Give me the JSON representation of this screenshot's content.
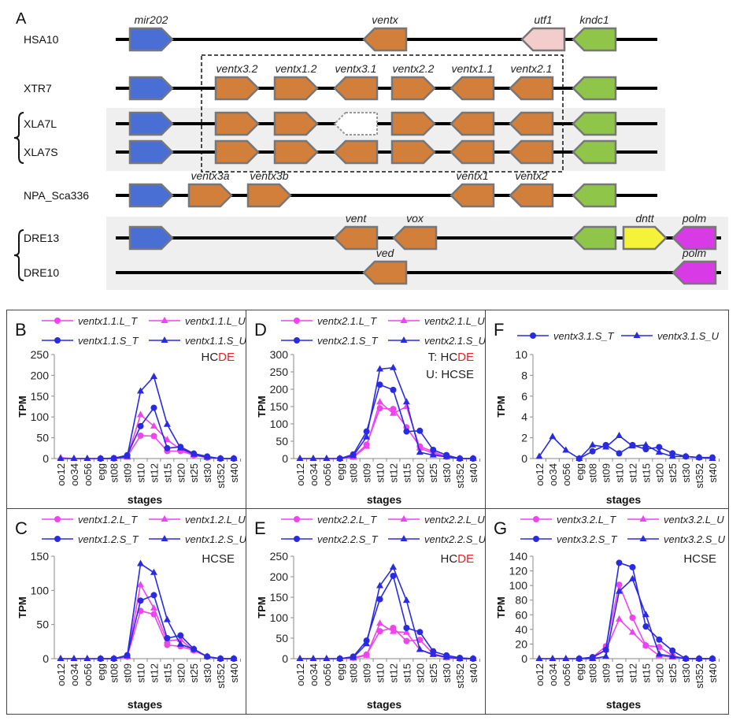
{
  "panel_a": {
    "letter": "A",
    "colors": {
      "mir": "#4a6fd4",
      "ventx": "#d27f3c",
      "utf1": "#f3cccc",
      "kndc1": "#8fc64a",
      "dntt": "#f5f23a",
      "polm": "#d83be6",
      "missing": "#ffffff"
    },
    "rows": [
      {
        "label": "HSA10",
        "genes": [
          {
            "label": "mir202",
            "type": "mir",
            "strand": "+"
          },
          {
            "label": "ventx",
            "type": "ventx",
            "strand": "-"
          },
          {
            "label": "utf1",
            "type": "utf1",
            "strand": "-"
          },
          {
            "label": "kndc1",
            "type": "kndc1",
            "strand": "-"
          }
        ]
      },
      {
        "label": "XTR7",
        "genes": [
          {
            "label": "",
            "type": "mir",
            "strand": "+"
          },
          {
            "label": "ventx3.2",
            "type": "ventx",
            "strand": "+"
          },
          {
            "label": "ventx1.2",
            "type": "ventx",
            "strand": "+"
          },
          {
            "label": "ventx3.1",
            "type": "ventx",
            "strand": "-"
          },
          {
            "label": "ventx2.2",
            "type": "ventx",
            "strand": "+"
          },
          {
            "label": "ventx1.1",
            "type": "ventx",
            "strand": "-"
          },
          {
            "label": "ventx2.1",
            "type": "ventx",
            "strand": "-"
          },
          {
            "label": "",
            "type": "kndc1",
            "strand": "-"
          }
        ]
      },
      {
        "label": "XLA7L",
        "genes": [
          {
            "label": "",
            "type": "mir",
            "strand": "+"
          },
          {
            "label": "",
            "type": "ventx",
            "strand": "+"
          },
          {
            "label": "",
            "type": "ventx",
            "strand": "+"
          },
          {
            "label": "",
            "type": "missing",
            "strand": "-"
          },
          {
            "label": "",
            "type": "ventx",
            "strand": "+"
          },
          {
            "label": "",
            "type": "ventx",
            "strand": "-"
          },
          {
            "label": "",
            "type": "ventx",
            "strand": "-"
          },
          {
            "label": "",
            "type": "kndc1",
            "strand": "-"
          }
        ]
      },
      {
        "label": "XLA7S",
        "genes": [
          {
            "label": "",
            "type": "mir",
            "strand": "+"
          },
          {
            "label": "",
            "type": "ventx",
            "strand": "+"
          },
          {
            "label": "",
            "type": "ventx",
            "strand": "+"
          },
          {
            "label": "",
            "type": "ventx",
            "strand": "-"
          },
          {
            "label": "",
            "type": "ventx",
            "strand": "+"
          },
          {
            "label": "",
            "type": "ventx",
            "strand": "-"
          },
          {
            "label": "",
            "type": "ventx",
            "strand": "-"
          },
          {
            "label": "",
            "type": "kndc1",
            "strand": "-"
          }
        ]
      },
      {
        "label": "NPA_Sca336",
        "genes": [
          {
            "label": "",
            "type": "mir",
            "strand": "+"
          },
          {
            "label": "ventx3a",
            "type": "ventx",
            "strand": "+"
          },
          {
            "label": "ventx3b",
            "type": "ventx",
            "strand": "+"
          },
          {
            "label": "ventx1",
            "type": "ventx",
            "strand": "-"
          },
          {
            "label": "ventx2",
            "type": "ventx",
            "strand": "-"
          },
          {
            "label": "",
            "type": "kndc1",
            "strand": "-"
          }
        ]
      },
      {
        "label": "DRE13",
        "genes": [
          {
            "label": "",
            "type": "mir",
            "strand": "+"
          },
          {
            "label": "vent",
            "type": "ventx",
            "strand": "-"
          },
          {
            "label": "vox",
            "type": "ventx",
            "strand": "-"
          },
          {
            "label": "",
            "type": "kndc1",
            "strand": "-"
          },
          {
            "label": "dntt",
            "type": "dntt",
            "strand": "+"
          },
          {
            "label": "polm",
            "type": "polm",
            "strand": "-"
          }
        ]
      },
      {
        "label": "DRE10",
        "genes": [
          {
            "label": "ved",
            "type": "ventx",
            "strand": "-"
          },
          {
            "label": "polm",
            "type": "polm",
            "strand": "-"
          }
        ]
      }
    ]
  },
  "chart_data": [
    {
      "type": "line",
      "letter": "B",
      "xlabel": "stages",
      "ylabel": "TPM",
      "ylim": [
        0,
        250
      ],
      "yticks": [
        "0",
        "50",
        "100",
        "150",
        "200",
        "250"
      ],
      "categories": [
        "oo12",
        "oo34",
        "oo56",
        "egg",
        "st08",
        "st09",
        "st10",
        "st12",
        "st15",
        "st20",
        "st25",
        "st30",
        "st352",
        "st40"
      ],
      "annotation": [
        {
          "parts": [
            {
              "text": "HC",
              "color": "#222222"
            },
            {
              "text": "DE",
              "color": "#e0262b"
            }
          ]
        }
      ],
      "series": [
        {
          "name": "ventx1.1.L_T",
          "color": "#ee44ee",
          "marker": "circle",
          "values": [
            null,
            null,
            null,
            0,
            0,
            5,
            55,
            54,
            18,
            18,
            8,
            2,
            0,
            0
          ]
        },
        {
          "name": "ventx1.1.L_U",
          "color": "#ee44ee",
          "marker": "triangle",
          "values": [
            2,
            0,
            0,
            0,
            0,
            3,
            105,
            78,
            45,
            22,
            8,
            3,
            0,
            0
          ]
        },
        {
          "name": "ventx1.1.S_T",
          "color": "#2a2ae0",
          "marker": "circle",
          "values": [
            null,
            null,
            null,
            0,
            1,
            8,
            78,
            122,
            25,
            28,
            12,
            5,
            0,
            0
          ]
        },
        {
          "name": "ventx1.1.S_U",
          "color": "#2a2ae0",
          "marker": "triangle",
          "values": [
            0,
            0,
            0,
            0,
            0,
            5,
            162,
            197,
            82,
            25,
            10,
            3,
            0,
            0
          ]
        }
      ]
    },
    {
      "type": "line",
      "letter": "D",
      "xlabel": "stages",
      "ylabel": "TPM",
      "ylim": [
        0,
        300
      ],
      "yticks": [
        "0",
        "50",
        "100",
        "150",
        "200",
        "250",
        "300"
      ],
      "categories": [
        "oo12",
        "oo34",
        "oo56",
        "egg",
        "st08",
        "st09",
        "st10",
        "st12",
        "st15",
        "st20",
        "st25",
        "st30",
        "st352",
        "st40"
      ],
      "annotation": [
        {
          "parts": [
            {
              "text": "T: HC",
              "color": "#222222"
            },
            {
              "text": "DE",
              "color": "#e0262b"
            }
          ]
        },
        {
          "parts": [
            {
              "text": "U: HCSE",
              "color": "#222222"
            }
          ]
        }
      ],
      "series": [
        {
          "name": "ventx2.1.L_T",
          "color": "#ee44ee",
          "marker": "circle",
          "values": [
            null,
            null,
            null,
            0,
            5,
            40,
            145,
            143,
            90,
            35,
            20,
            5,
            0,
            0
          ]
        },
        {
          "name": "ventx2.1.L_U",
          "color": "#ee44ee",
          "marker": "triangle",
          "values": [
            0,
            0,
            0,
            0,
            3,
            35,
            163,
            130,
            150,
            30,
            15,
            5,
            0,
            0
          ]
        },
        {
          "name": "ventx2.1.S_T",
          "color": "#2a2ae0",
          "marker": "circle",
          "values": [
            null,
            null,
            null,
            0,
            12,
            78,
            213,
            198,
            78,
            80,
            25,
            10,
            0,
            0
          ]
        },
        {
          "name": "ventx2.1.S_U",
          "color": "#2a2ae0",
          "marker": "triangle",
          "values": [
            0,
            0,
            0,
            0,
            8,
            62,
            258,
            262,
            163,
            18,
            10,
            5,
            0,
            0
          ]
        }
      ]
    },
    {
      "type": "line",
      "letter": "F",
      "xlabel": "stages",
      "ylabel": "TPM",
      "ylim": [
        0,
        10
      ],
      "yticks": [
        "0",
        "2",
        "4",
        "6",
        "8",
        "10"
      ],
      "categories": [
        "oo12",
        "oo34",
        "oo56",
        "egg",
        "st08",
        "st09",
        "st10",
        "st12",
        "st15",
        "st20",
        "st25",
        "st30",
        "st352",
        "st40"
      ],
      "annotation": [],
      "series": [
        {
          "name": "ventx3.1.S_T",
          "color": "#2a2ae0",
          "marker": "circle",
          "values": [
            null,
            null,
            null,
            0,
            0.7,
            1.3,
            0.5,
            1.3,
            0.9,
            1.1,
            0.5,
            0.2,
            0.1,
            0.1
          ]
        },
        {
          "name": "ventx3.1.S_U",
          "color": "#2a2ae0",
          "marker": "triangle",
          "values": [
            0.2,
            2.1,
            0.8,
            0,
            1.3,
            1.1,
            2.2,
            1.2,
            1.3,
            0.6,
            0.2,
            0.2,
            0.1,
            0
          ]
        }
      ]
    },
    {
      "type": "line",
      "letter": "C",
      "xlabel": "stages",
      "ylabel": "TPM",
      "ylim": [
        0,
        150
      ],
      "yticks": [
        "0",
        "50",
        "100",
        "150"
      ],
      "categories": [
        "oo12",
        "oo34",
        "oo56",
        "egg",
        "st08",
        "st09",
        "st10",
        "st12",
        "st15",
        "st20",
        "st25",
        "st30",
        "st352",
        "st40"
      ],
      "annotation": [
        {
          "parts": [
            {
              "text": "HCSE",
              "color": "#222222"
            }
          ]
        }
      ],
      "series": [
        {
          "name": "ventx1.2.L_T",
          "color": "#ee44ee",
          "marker": "circle",
          "values": [
            null,
            null,
            null,
            0,
            0,
            3,
            70,
            65,
            20,
            18,
            12,
            3,
            0,
            0
          ]
        },
        {
          "name": "ventx1.2.L_U",
          "color": "#ee44ee",
          "marker": "triangle",
          "values": [
            0,
            0,
            0,
            0,
            0,
            3,
            108,
            74,
            26,
            28,
            12,
            3,
            0,
            0
          ]
        },
        {
          "name": "ventx1.2.S_T",
          "color": "#2a2ae0",
          "marker": "circle",
          "values": [
            null,
            null,
            null,
            0,
            0,
            5,
            85,
            93,
            30,
            34,
            14,
            3,
            0,
            0
          ]
        },
        {
          "name": "ventx1.2.S_U",
          "color": "#2a2ae0",
          "marker": "triangle",
          "values": [
            0,
            0,
            0,
            0,
            0,
            4,
            139,
            126,
            57,
            21,
            14,
            3,
            0,
            0
          ]
        }
      ]
    },
    {
      "type": "line",
      "letter": "E",
      "xlabel": "stages",
      "ylabel": "TPM",
      "ylim": [
        0,
        250
      ],
      "yticks": [
        "0",
        "50",
        "100",
        "150",
        "200",
        "250"
      ],
      "categories": [
        "oo12",
        "oo34",
        "oo56",
        "egg",
        "st08",
        "st09",
        "st10",
        "st12",
        "st15",
        "st20",
        "st25",
        "st30",
        "st352",
        "st40"
      ],
      "annotation": [
        {
          "parts": [
            {
              "text": "HC",
              "color": "#222222"
            },
            {
              "text": "DE",
              "color": "#e0262b"
            }
          ]
        }
      ],
      "series": [
        {
          "name": "ventx2.2.L_T",
          "color": "#ee44ee",
          "marker": "circle",
          "values": [
            null,
            null,
            null,
            0,
            2,
            10,
            67,
            75,
            43,
            46,
            12,
            3,
            0,
            0
          ]
        },
        {
          "name": "ventx2.2.L_U",
          "color": "#ee44ee",
          "marker": "triangle",
          "values": [
            0,
            0,
            0,
            0,
            1,
            8,
            86,
            66,
            64,
            22,
            10,
            2,
            0,
            0
          ]
        },
        {
          "name": "ventx2.2.S_T",
          "color": "#2a2ae0",
          "marker": "circle",
          "values": [
            null,
            null,
            null,
            0,
            5,
            44,
            145,
            202,
            75,
            65,
            18,
            8,
            2,
            0
          ]
        },
        {
          "name": "ventx2.2.S_U",
          "color": "#2a2ae0",
          "marker": "triangle",
          "values": [
            0,
            0,
            0,
            0,
            3,
            36,
            178,
            223,
            142,
            22,
            10,
            4,
            0,
            0
          ]
        }
      ]
    },
    {
      "type": "line",
      "letter": "G",
      "xlabel": "stages",
      "ylabel": "TPM",
      "ylim": [
        0,
        140
      ],
      "yticks": [
        "0",
        "20",
        "40",
        "60",
        "80",
        "100",
        "120",
        "140"
      ],
      "categories": [
        "oo12",
        "oo34",
        "oo56",
        "egg",
        "st08",
        "st09",
        "st10",
        "st12",
        "st15",
        "st20",
        "st25",
        "st30",
        "st352",
        "st40"
      ],
      "annotation": [
        {
          "parts": [
            {
              "text": "HCSE",
              "color": "#222222"
            }
          ]
        }
      ],
      "series": [
        {
          "name": "ventx3.2.L_T",
          "color": "#ee44ee",
          "marker": "circle",
          "values": [
            null,
            null,
            null,
            0,
            2,
            17,
            101,
            56,
            18,
            16,
            4,
            0,
            0,
            0
          ]
        },
        {
          "name": "ventx3.2.L_U",
          "color": "#ee44ee",
          "marker": "triangle",
          "values": [
            0,
            0,
            0,
            0,
            1,
            12,
            54,
            36,
            18,
            4,
            2,
            0,
            0,
            0
          ]
        },
        {
          "name": "ventx3.2.S_T",
          "color": "#2a2ae0",
          "marker": "circle",
          "values": [
            null,
            null,
            null,
            0,
            2,
            12,
            131,
            125,
            44,
            26,
            11,
            0,
            0,
            0
          ]
        },
        {
          "name": "ventx3.2.S_U",
          "color": "#2a2ae0",
          "marker": "triangle",
          "values": [
            0,
            0,
            0,
            0,
            0,
            3,
            92,
            109,
            60,
            6,
            3,
            0,
            0,
            0
          ]
        }
      ]
    }
  ]
}
